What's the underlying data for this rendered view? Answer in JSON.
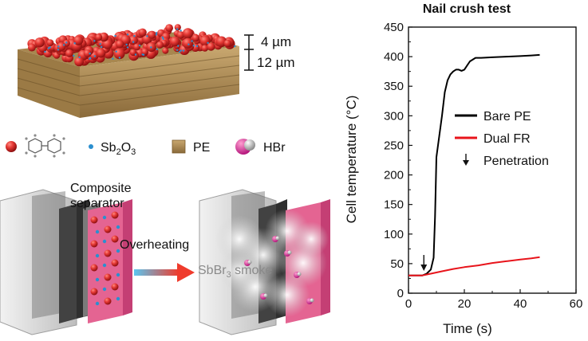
{
  "figure": {
    "scale_top": "4 µm",
    "scale_bottom": "12 µm",
    "legend_items": [
      {
        "icon": "red-sphere-icon",
        "label": ""
      },
      {
        "icon": "molecule-icon",
        "label": ""
      },
      {
        "icon": "blue-dot-icon",
        "label": "Sb2O3"
      },
      {
        "icon": "pe-square-icon",
        "label": "PE"
      },
      {
        "icon": "hbr-molecule-icon",
        "label": "HBr"
      }
    ],
    "composite_label_line1": "Composite",
    "composite_label_line2": "separator",
    "overheating_label": "Overheating",
    "smoke_label": "SbBr3 smoke"
  },
  "chart_data": {
    "type": "line",
    "title": "Nail crush test",
    "xlabel": "Time (s)",
    "ylabel": "Cell temperature (°C)",
    "xlim": [
      0,
      60
    ],
    "ylim": [
      0,
      450
    ],
    "xticks": [
      0,
      20,
      40,
      60
    ],
    "yticks": [
      0,
      50,
      100,
      150,
      200,
      250,
      300,
      350,
      400,
      450
    ],
    "series": [
      {
        "name": "Bare PE",
        "color": "#000000",
        "points": [
          [
            0,
            30
          ],
          [
            5,
            30
          ],
          [
            6.5,
            33
          ],
          [
            8,
            40
          ],
          [
            9,
            60
          ],
          [
            9.5,
            130
          ],
          [
            10,
            230
          ],
          [
            11,
            265
          ],
          [
            12,
            300
          ],
          [
            13,
            340
          ],
          [
            14,
            360
          ],
          [
            15,
            370
          ],
          [
            16,
            375
          ],
          [
            17,
            378
          ],
          [
            18,
            378
          ],
          [
            19,
            376
          ],
          [
            20,
            378
          ],
          [
            21,
            385
          ],
          [
            22,
            392
          ],
          [
            24,
            398
          ],
          [
            26,
            398
          ],
          [
            30,
            399
          ],
          [
            35,
            400
          ],
          [
            40,
            401
          ],
          [
            44,
            402
          ],
          [
            47,
            403
          ]
        ]
      },
      {
        "name": "Dual FR",
        "color": "#e8141b",
        "points": [
          [
            0,
            30
          ],
          [
            5,
            30
          ],
          [
            8,
            33
          ],
          [
            12,
            37
          ],
          [
            16,
            41
          ],
          [
            20,
            44
          ],
          [
            25,
            47
          ],
          [
            30,
            51
          ],
          [
            35,
            54
          ],
          [
            40,
            57
          ],
          [
            44,
            59
          ],
          [
            47,
            61
          ]
        ]
      }
    ],
    "annotation": {
      "label": "Penetration",
      "x": 5.5,
      "y": 35
    },
    "legend": [
      {
        "label": "Bare PE",
        "color": "#000000",
        "type": "line"
      },
      {
        "label": "Dual FR",
        "color": "#e8141b",
        "type": "line"
      },
      {
        "label": "Penetration",
        "type": "arrow"
      }
    ],
    "legend_position": "center-right",
    "grid": false
  }
}
